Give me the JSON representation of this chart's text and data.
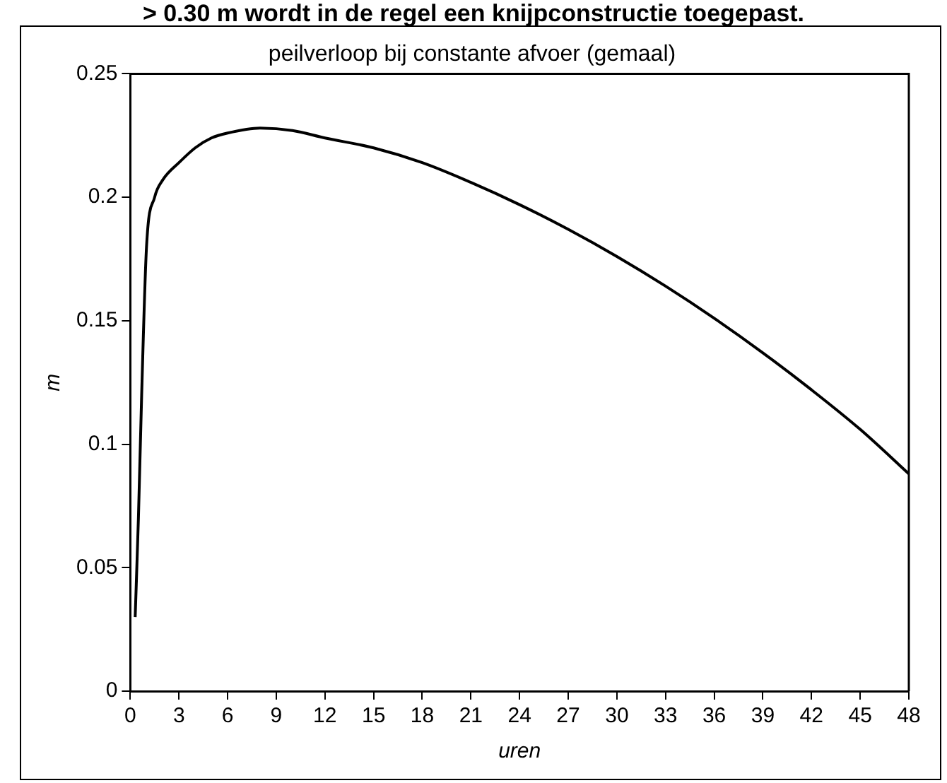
{
  "chart_data": {
    "type": "line",
    "title": "peilverloop bij constante afvoer (gemaal)",
    "xlabel": "uren",
    "ylabel": "m",
    "annotations": [
      "> 0.30 m wordt in de regel een knijpconstructie toegepast."
    ],
    "series": [
      {
        "color": "#000000",
        "x": [
          0.3,
          0.5,
          0.7,
          1,
          1.5,
          2,
          3,
          4,
          5,
          6,
          8,
          10,
          12,
          15,
          18,
          21,
          24,
          27,
          30,
          33,
          36,
          39,
          42,
          45,
          48
        ],
        "values": [
          0.03,
          0.07,
          0.12,
          0.18,
          0.2,
          0.207,
          0.214,
          0.22,
          0.224,
          0.226,
          0.228,
          0.227,
          0.224,
          0.22,
          0.214,
          0.206,
          0.197,
          0.187,
          0.176,
          0.164,
          0.151,
          0.137,
          0.122,
          0.106,
          0.088
        ]
      }
    ],
    "xlim": [
      0,
      48
    ],
    "xticks": [
      0,
      3,
      6,
      9,
      12,
      15,
      18,
      21,
      24,
      27,
      30,
      33,
      36,
      39,
      42,
      45,
      48
    ],
    "ylim": [
      0,
      0.25
    ],
    "yticks": [
      0,
      0.05,
      0.1,
      0.15,
      0.2,
      0.25
    ],
    "grid": false,
    "legend": false,
    "marker": "none",
    "line_style": "solid"
  }
}
